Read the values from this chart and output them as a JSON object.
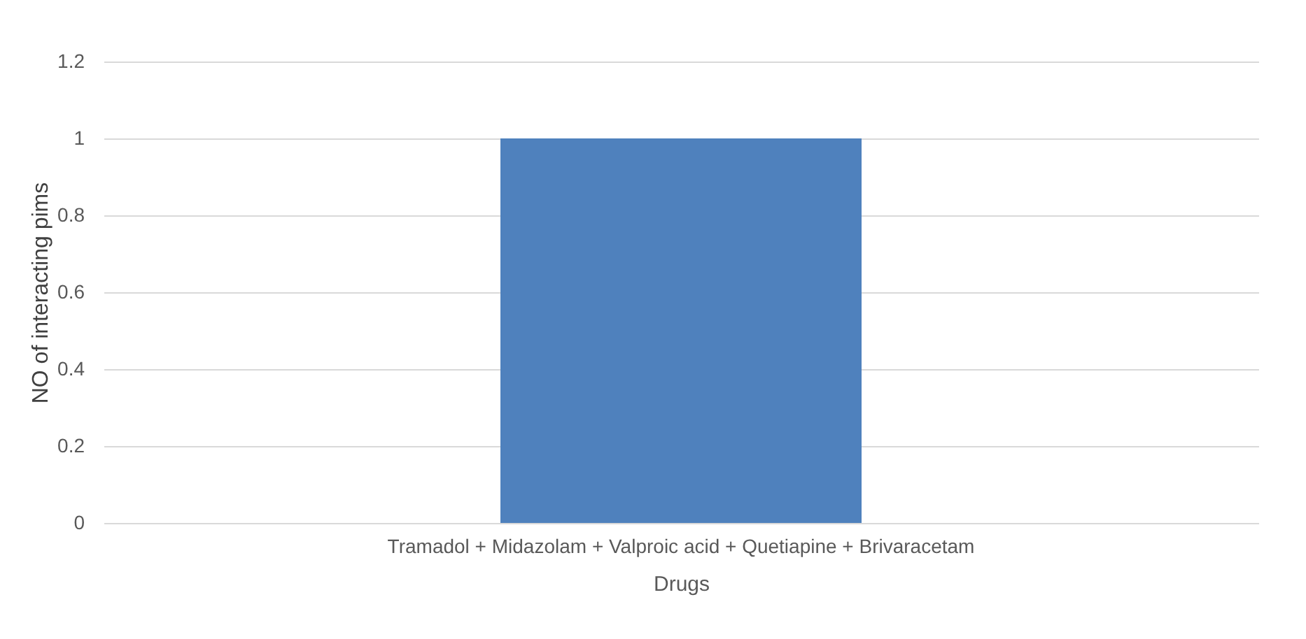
{
  "chart_data": {
    "type": "bar",
    "xlabel": "Drugs",
    "ylabel": "NO of interacting pims",
    "categories": [
      "Tramadol + Midazolam + Valproic acid + Quetiapine + Brivaracetam"
    ],
    "values": [
      1
    ],
    "color": "#4f81bd",
    "ylim": [
      0,
      1.2
    ],
    "yticks": [
      0,
      0.2,
      0.4,
      0.6,
      0.8,
      1,
      1.2
    ],
    "grid": "y"
  }
}
